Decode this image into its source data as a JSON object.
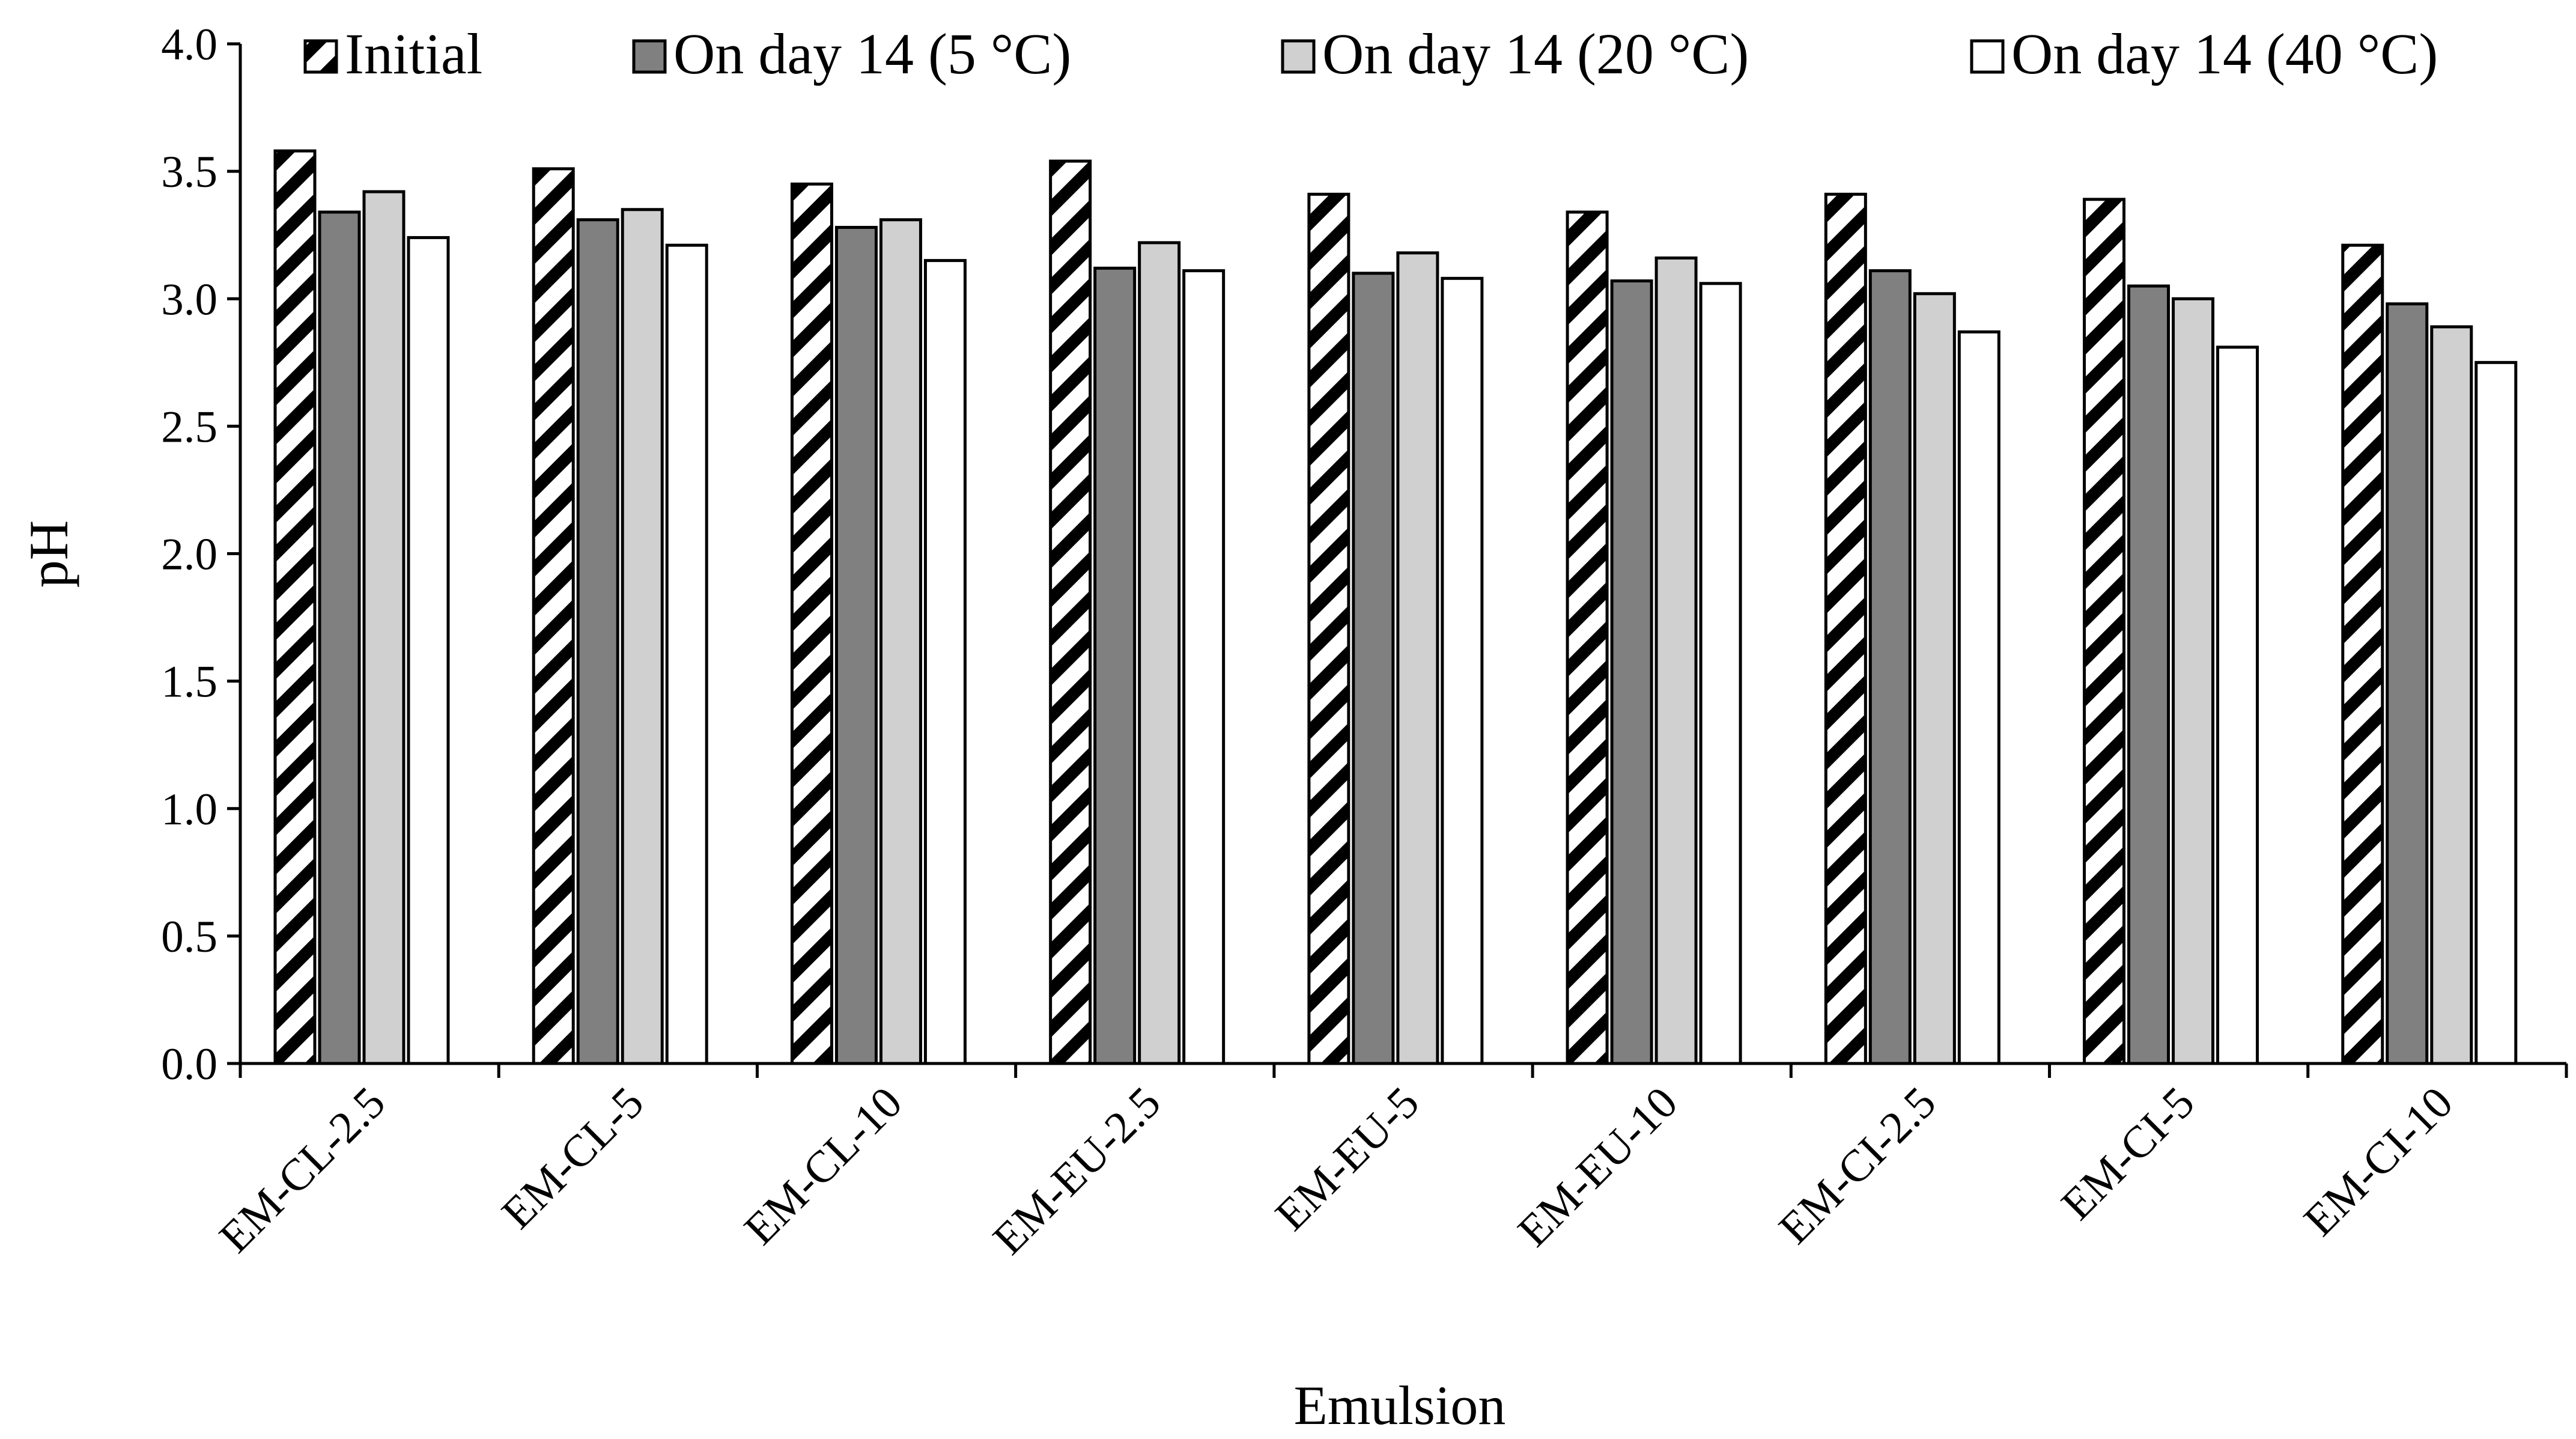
{
  "chart_data": {
    "type": "bar",
    "title": "",
    "xlabel": "Emulsion",
    "ylabel": "pH",
    "ylim": [
      0,
      4.0
    ],
    "ytick_step": 0.5,
    "yticks": [
      "0.0",
      "0.5",
      "1.0",
      "1.5",
      "2.0",
      "2.5",
      "3.0",
      "3.5",
      "4.0"
    ],
    "grid": false,
    "legend_position": "top",
    "categories": [
      "EM-CL-2.5",
      "EM-CL-5",
      "EM-CL-10",
      "EM-EU-2.5",
      "EM-EU-5",
      "EM-EU-10",
      "EM-CI-2.5",
      "EM-CI-5",
      "EM-CI-10"
    ],
    "series": [
      {
        "name": "Initial",
        "pattern": "hatch",
        "color": "#ffffff",
        "values": [
          3.58,
          3.51,
          3.45,
          3.54,
          3.41,
          3.34,
          3.41,
          3.39,
          3.21
        ]
      },
      {
        "name": "On day 14 (5 °C)",
        "pattern": "solid",
        "color": "#808080",
        "values": [
          3.34,
          3.31,
          3.28,
          3.12,
          3.1,
          3.07,
          3.11,
          3.05,
          2.98
        ]
      },
      {
        "name": "On day 14 (20 °C)",
        "pattern": "solid",
        "color": "#d0d0d0",
        "values": [
          3.42,
          3.35,
          3.31,
          3.22,
          3.18,
          3.16,
          3.02,
          3.0,
          2.89
        ]
      },
      {
        "name": "On day 14 (40 °C)",
        "pattern": "solid",
        "color": "#ffffff",
        "values": [
          3.24,
          3.21,
          3.15,
          3.11,
          3.08,
          3.06,
          2.87,
          2.81,
          2.75
        ]
      }
    ]
  }
}
